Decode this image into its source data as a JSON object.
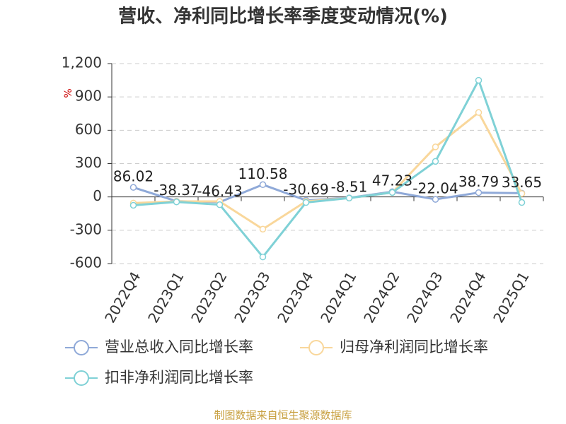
{
  "chart_data": {
    "type": "line",
    "title": "营收、净利同比增长率季度变动情况(%)",
    "y_label": "%",
    "source": "制图数据来自恒生聚源数据库",
    "categories": [
      "2022Q4",
      "2023Q1",
      "2023Q2",
      "2023Q3",
      "2023Q4",
      "2024Q1",
      "2024Q2",
      "2024Q3",
      "2024Q4",
      "2025Q1"
    ],
    "series": [
      {
        "name": "营业总收入同比增长率",
        "color": "#8fa9d8",
        "values": [
          86.02,
          -38.37,
          -46.43,
          110.58,
          -30.69,
          -8.51,
          47.23,
          -22.04,
          38.79,
          33.65
        ],
        "show_labels": true
      },
      {
        "name": "归母净利润同比增长率",
        "color": "#f9d79b",
        "values": [
          -55,
          -40,
          -40,
          -290,
          -40,
          -10,
          40,
          450,
          760,
          30
        ]
      },
      {
        "name": "扣非净利润同比增长率",
        "color": "#7fd1d6",
        "values": [
          -75,
          -45,
          -70,
          -540,
          -50,
          -10,
          40,
          320,
          1050,
          -50
        ]
      }
    ],
    "ylim": [
      -600,
      1200
    ],
    "yticks": [
      -600,
      -300,
      0,
      300,
      600,
      900,
      {
        "value": 1200,
        "label": "1,200"
      }
    ],
    "grid": true
  }
}
